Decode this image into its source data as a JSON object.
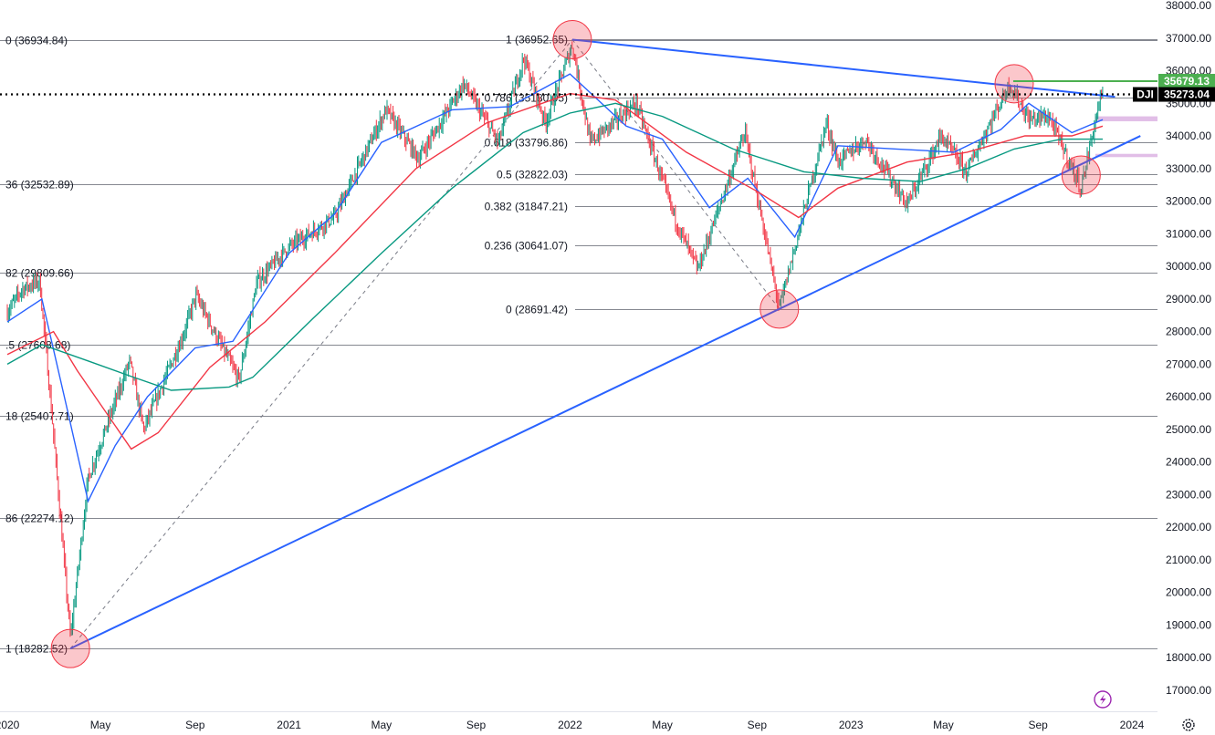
{
  "chart_data": {
    "type": "line",
    "title": "",
    "symbol": "DJI",
    "xlabel": "",
    "ylabel": "",
    "ylim": [
      16500,
      38000
    ],
    "y_ticks": [
      17000,
      18000,
      19000,
      20000,
      21000,
      22000,
      23000,
      24000,
      25000,
      26000,
      27000,
      28000,
      29000,
      30000,
      31000,
      32000,
      33000,
      34000,
      35000,
      36000,
      37000,
      38000
    ],
    "y_tick_labels": [
      "17000.00",
      "18000.00",
      "19000.00",
      "20000.00",
      "21000.00",
      "22000.00",
      "23000.00",
      "24000.00",
      "25000.00",
      "26000.00",
      "27000.00",
      "28000.00",
      "29000.00",
      "30000.00",
      "31000.00",
      "32000.00",
      "33000.00",
      "34000.00",
      "35000.00",
      "36000.00",
      "37000.00",
      "38000.00"
    ],
    "x_tick_labels": [
      {
        "label": "2020",
        "date": "2020-01-01"
      },
      {
        "label": "May",
        "date": "2020-05-01"
      },
      {
        "label": "Sep",
        "date": "2020-09-01"
      },
      {
        "label": "2021",
        "date": "2021-01-01"
      },
      {
        "label": "May",
        "date": "2021-05-01"
      },
      {
        "label": "Sep",
        "date": "2021-09-01"
      },
      {
        "label": "2022",
        "date": "2022-01-01"
      },
      {
        "label": "May",
        "date": "2022-05-01"
      },
      {
        "label": "Sep",
        "date": "2022-09-01"
      },
      {
        "label": "2023",
        "date": "2023-01-01"
      },
      {
        "label": "May",
        "date": "2023-05-01"
      },
      {
        "label": "Sep",
        "date": "2023-09-01"
      },
      {
        "label": "2024",
        "date": "2024-01-01"
      }
    ],
    "price_close": [
      {
        "date": "2020-01-01",
        "value": 28600
      },
      {
        "date": "2020-01-20",
        "value": 29300
      },
      {
        "date": "2020-02-12",
        "value": 29550
      },
      {
        "date": "2020-02-28",
        "value": 25400
      },
      {
        "date": "2020-03-23",
        "value": 18600
      },
      {
        "date": "2020-04-15",
        "value": 23500
      },
      {
        "date": "2020-06-08",
        "value": 27100
      },
      {
        "date": "2020-06-26",
        "value": 25000
      },
      {
        "date": "2020-08-15",
        "value": 27800
      },
      {
        "date": "2020-09-02",
        "value": 29100
      },
      {
        "date": "2020-10-28",
        "value": 26500
      },
      {
        "date": "2020-11-20",
        "value": 29500
      },
      {
        "date": "2021-01-01",
        "value": 30600
      },
      {
        "date": "2021-03-01",
        "value": 31500
      },
      {
        "date": "2021-05-07",
        "value": 34800
      },
      {
        "date": "2021-06-18",
        "value": 33300
      },
      {
        "date": "2021-08-16",
        "value": 35600
      },
      {
        "date": "2021-09-30",
        "value": 33800
      },
      {
        "date": "2021-11-02",
        "value": 36400
      },
      {
        "date": "2021-11-30",
        "value": 34400
      },
      {
        "date": "2022-01-04",
        "value": 36800
      },
      {
        "date": "2022-01-27",
        "value": 33800
      },
      {
        "date": "2022-03-28",
        "value": 35000
      },
      {
        "date": "2022-05-20",
        "value": 31300
      },
      {
        "date": "2022-06-16",
        "value": 29900
      },
      {
        "date": "2022-08-16",
        "value": 34100
      },
      {
        "date": "2022-09-30",
        "value": 28700
      },
      {
        "date": "2022-11-30",
        "value": 34400
      },
      {
        "date": "2022-12-15",
        "value": 33200
      },
      {
        "date": "2023-01-20",
        "value": 33900
      },
      {
        "date": "2023-03-15",
        "value": 31900
      },
      {
        "date": "2023-04-28",
        "value": 34000
      },
      {
        "date": "2023-05-31",
        "value": 32900
      },
      {
        "date": "2023-07-26",
        "value": 35600
      },
      {
        "date": "2023-08-20",
        "value": 34500
      },
      {
        "date": "2023-09-15",
        "value": 34600
      },
      {
        "date": "2023-10-27",
        "value": 32400
      },
      {
        "date": "2023-11-20",
        "value": 35100
      },
      {
        "date": "2023-11-24",
        "value": 35273
      }
    ],
    "series": [
      {
        "color": "#2962ff",
        "values": [
          {
            "date": "2020-01-01",
            "value": 28300
          },
          {
            "date": "2020-02-15",
            "value": 29000
          },
          {
            "date": "2020-03-20",
            "value": 25500
          },
          {
            "date": "2020-04-15",
            "value": 22800
          },
          {
            "date": "2020-05-20",
            "value": 24500
          },
          {
            "date": "2020-07-01",
            "value": 26000
          },
          {
            "date": "2020-09-01",
            "value": 27500
          },
          {
            "date": "2020-10-20",
            "value": 27700
          },
          {
            "date": "2021-01-01",
            "value": 30400
          },
          {
            "date": "2021-03-01",
            "value": 31600
          },
          {
            "date": "2021-05-01",
            "value": 33800
          },
          {
            "date": "2021-08-01",
            "value": 34800
          },
          {
            "date": "2021-10-15",
            "value": 34900
          },
          {
            "date": "2022-01-01",
            "value": 35900
          },
          {
            "date": "2022-03-15",
            "value": 34300
          },
          {
            "date": "2022-05-01",
            "value": 33900
          },
          {
            "date": "2022-07-01",
            "value": 31800
          },
          {
            "date": "2022-08-20",
            "value": 32700
          },
          {
            "date": "2022-10-20",
            "value": 30900
          },
          {
            "date": "2022-12-15",
            "value": 33700
          },
          {
            "date": "2023-03-01",
            "value": 33600
          },
          {
            "date": "2023-05-15",
            "value": 33500
          },
          {
            "date": "2023-07-15",
            "value": 34200
          },
          {
            "date": "2023-08-20",
            "value": 35000
          },
          {
            "date": "2023-10-15",
            "value": 34100
          },
          {
            "date": "2023-11-24",
            "value": 34500
          }
        ]
      },
      {
        "color": "#f23645",
        "values": [
          {
            "date": "2020-01-01",
            "value": 27300
          },
          {
            "date": "2020-03-01",
            "value": 28000
          },
          {
            "date": "2020-04-01",
            "value": 26800
          },
          {
            "date": "2020-06-10",
            "value": 24400
          },
          {
            "date": "2020-07-15",
            "value": 24900
          },
          {
            "date": "2020-09-20",
            "value": 26900
          },
          {
            "date": "2020-12-01",
            "value": 28300
          },
          {
            "date": "2021-03-01",
            "value": 30400
          },
          {
            "date": "2021-06-15",
            "value": 33000
          },
          {
            "date": "2021-09-15",
            "value": 34400
          },
          {
            "date": "2022-01-01",
            "value": 35300
          },
          {
            "date": "2022-03-01",
            "value": 35100
          },
          {
            "date": "2022-06-01",
            "value": 33500
          },
          {
            "date": "2022-09-01",
            "value": 32300
          },
          {
            "date": "2022-10-25",
            "value": 31500
          },
          {
            "date": "2022-12-15",
            "value": 32400
          },
          {
            "date": "2023-03-15",
            "value": 33200
          },
          {
            "date": "2023-06-01",
            "value": 33500
          },
          {
            "date": "2023-08-15",
            "value": 34000
          },
          {
            "date": "2023-10-15",
            "value": 34000
          },
          {
            "date": "2023-11-24",
            "value": 34300
          }
        ]
      },
      {
        "color": "#089981",
        "values": [
          {
            "date": "2020-01-01",
            "value": 27000
          },
          {
            "date": "2020-02-15",
            "value": 27600
          },
          {
            "date": "2020-04-15",
            "value": 27100
          },
          {
            "date": "2020-06-01",
            "value": 26700
          },
          {
            "date": "2020-08-01",
            "value": 26200
          },
          {
            "date": "2020-10-15",
            "value": 26300
          },
          {
            "date": "2020-11-15",
            "value": 26600
          },
          {
            "date": "2021-02-01",
            "value": 28400
          },
          {
            "date": "2021-05-01",
            "value": 30400
          },
          {
            "date": "2021-08-01",
            "value": 32400
          },
          {
            "date": "2021-11-01",
            "value": 34100
          },
          {
            "date": "2022-01-01",
            "value": 34700
          },
          {
            "date": "2022-03-01",
            "value": 35000
          },
          {
            "date": "2022-05-01",
            "value": 34600
          },
          {
            "date": "2022-08-01",
            "value": 33600
          },
          {
            "date": "2022-11-01",
            "value": 32900
          },
          {
            "date": "2023-01-15",
            "value": 32700
          },
          {
            "date": "2023-04-01",
            "value": 32600
          },
          {
            "date": "2023-06-01",
            "value": 33000
          },
          {
            "date": "2023-08-01",
            "value": 33600
          },
          {
            "date": "2023-10-01",
            "value": 33900
          },
          {
            "date": "2023-11-24",
            "value": 33900
          }
        ]
      }
    ],
    "fib_levels": [
      {
        "label": "0 (36934.84)",
        "value": 36934.84,
        "text_pos": "left"
      },
      {
        "label": "36 (32532.89)",
        "value": 32532.89,
        "text_pos": "left"
      },
      {
        "label": "82 (29809.66)",
        "value": 29809.66,
        "text_pos": "left"
      },
      {
        "label": ".5 (27608.68)",
        "value": 27608.68,
        "text_pos": "left"
      },
      {
        "label": "18 (25407.71)",
        "value": 25407.71,
        "text_pos": "left"
      },
      {
        "label": "86 (22274.12)",
        "value": 22274.12,
        "text_pos": "left"
      },
      {
        "label": "1 (18282.52)",
        "value": 18282.52,
        "text_pos": "left"
      },
      {
        "label": "1 (36952.65)",
        "value": 36952.65,
        "text_pos": "mid"
      },
      {
        "label": "0.786 (35180.05)",
        "value": 35180,
        "text_pos": "mid"
      },
      {
        "label": "0.618 (33796.86)",
        "value": 33796.86,
        "text_pos": "mid"
      },
      {
        "label": "0.5 (32822.03)",
        "value": 32822.03,
        "text_pos": "mid"
      },
      {
        "label": "0.382 (31847.21)",
        "value": 31847.21,
        "text_pos": "mid"
      },
      {
        "label": "0.236 (30641.07)",
        "value": 30641.07,
        "text_pos": "mid"
      },
      {
        "label": "0 (28691.42)",
        "value": 28691.42,
        "text_pos": "mid"
      }
    ],
    "trendlines": [
      {
        "color": "#2962ff",
        "from": {
          "date": "2020-03-23",
          "value": 18282.52
        },
        "to": {
          "date": "2024-01-12",
          "value": 34000
        }
      },
      {
        "color": "#2962ff",
        "from": {
          "date": "2022-01-04",
          "value": 36952.65
        },
        "to": {
          "date": "2023-12-10",
          "value": 35200
        }
      }
    ],
    "dashed_paths": [
      [
        {
          "date": "2020-03-23",
          "value": 18282.52
        },
        {
          "date": "2022-01-04",
          "value": 36952.65
        }
      ],
      [
        {
          "date": "2022-01-04",
          "value": 36952.65
        },
        {
          "date": "2022-09-30",
          "value": 28691.42
        }
      ]
    ],
    "highlight_circles": [
      {
        "date": "2020-03-23",
        "value": 18282.52
      },
      {
        "date": "2022-01-04",
        "value": 36952.65
      },
      {
        "date": "2022-09-30",
        "value": 28691.42
      },
      {
        "date": "2023-08-01",
        "value": 35600
      },
      {
        "date": "2023-10-27",
        "value": 32800
      }
    ],
    "horizontal_markers": [
      {
        "value": 35679.13,
        "label": "35679.13",
        "color": "#4caf50",
        "style": "solid"
      },
      {
        "value": 35273.04,
        "label": "35273.04",
        "color": "#000000",
        "style": "dotted",
        "tag": "DJI"
      }
    ],
    "zones": [
      {
        "from": 34450,
        "to": 34600,
        "color": "#e1bee7"
      },
      {
        "from": 33350,
        "to": 33450,
        "color": "#e1bee7"
      }
    ],
    "grid": false,
    "legend": "none"
  }
}
